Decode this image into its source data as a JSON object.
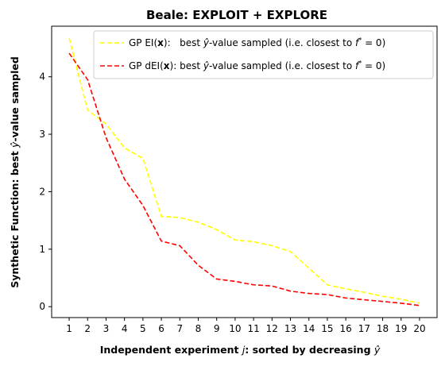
{
  "chart_data": {
    "type": "line",
    "title": "Beale: EXPLOIT + EXPLORE",
    "xlabel_main": "Independent experiment ",
    "xlabel_var": "j",
    "xlabel_rest": ": sorted by decreasing ",
    "xlabel_yhat": "ŷ",
    "ylabel_main": "Synthetic Function: best ",
    "ylabel_yhat": "ŷ",
    "ylabel_rest": "-value sampled",
    "x": [
      1,
      2,
      3,
      4,
      5,
      6,
      7,
      8,
      9,
      10,
      11,
      12,
      13,
      14,
      15,
      16,
      17,
      18,
      19,
      20
    ],
    "xlim": [
      0.05,
      20.95
    ],
    "ylim": [
      -0.19,
      4.88
    ],
    "yticks": [
      0,
      1,
      2,
      3,
      4
    ],
    "series": [
      {
        "name_prefix": "GP EI(",
        "name_bold": "x",
        "name_mid": "):   best ",
        "name_yhat": "ŷ",
        "name_after": "-value sampled (i.e. closest to ",
        "name_f": "f",
        "name_star": "*",
        "name_end": " = 0)",
        "color": "#ffff00",
        "style": "dashed",
        "values": [
          4.67,
          3.42,
          3.18,
          2.76,
          2.58,
          1.57,
          1.55,
          1.47,
          1.34,
          1.16,
          1.13,
          1.06,
          0.96,
          0.67,
          0.38,
          0.31,
          0.25,
          0.18,
          0.13,
          0.06
        ]
      },
      {
        "name_prefix": "GP dEI(",
        "name_bold": "x",
        "name_mid": "): best ",
        "name_yhat": "ŷ",
        "name_after": "-value sampled (i.e. closest to ",
        "name_f": "f",
        "name_star": "*",
        "name_end": " = 0)",
        "color": "#ff0000",
        "style": "dashed",
        "values": [
          4.41,
          3.95,
          2.94,
          2.22,
          1.76,
          1.14,
          1.06,
          0.72,
          0.48,
          0.44,
          0.38,
          0.36,
          0.27,
          0.23,
          0.21,
          0.15,
          0.12,
          0.09,
          0.06,
          0.02
        ]
      }
    ],
    "legend_position": "top-right",
    "grid": false
  }
}
